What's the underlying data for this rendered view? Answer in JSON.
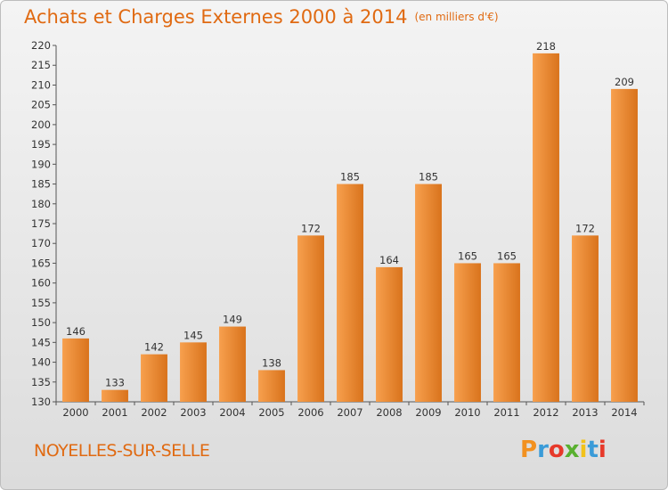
{
  "header": {
    "title": "Achats et Charges Externes 2000 à 2014",
    "unit": "(en milliers d'€)"
  },
  "footer": {
    "commune": "NOYELLES-SUR-SELLE",
    "brand": "Proxiti"
  },
  "colors": {
    "title": "#e06a12",
    "bar_light": "#f7a04e",
    "bar_dark": "#d9731c",
    "brand_letters": [
      "#f29120",
      "#3a9bd8",
      "#e7392a",
      "#59b030",
      "#f2c21a",
      "#3a9bd8",
      "#e7392a"
    ]
  },
  "chart_data": {
    "type": "bar",
    "title": "Achats et Charges Externes 2000 à 2014",
    "categories": [
      "2000",
      "2001",
      "2002",
      "2003",
      "2004",
      "2005",
      "2006",
      "2007",
      "2008",
      "2009",
      "2010",
      "2011",
      "2012",
      "2013",
      "2014"
    ],
    "values": [
      146,
      133,
      142,
      145,
      149,
      138,
      172,
      185,
      164,
      185,
      165,
      165,
      218,
      172,
      209
    ],
    "ylim": [
      130,
      220
    ],
    "yticks": [
      130,
      135,
      140,
      145,
      150,
      155,
      160,
      165,
      170,
      175,
      180,
      185,
      190,
      195,
      200,
      205,
      210,
      215,
      220
    ],
    "grid": false,
    "legend": "none"
  }
}
